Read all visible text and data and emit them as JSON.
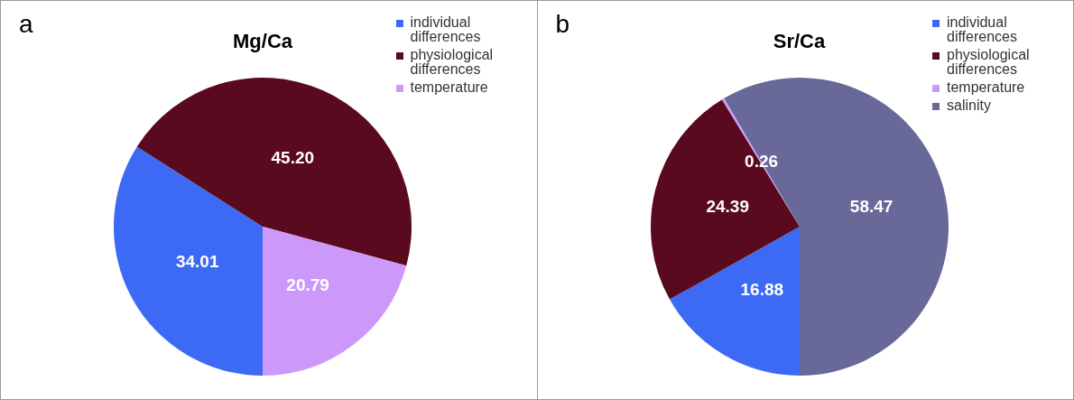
{
  "chart_data": [
    {
      "type": "pie",
      "title": "Mg/Ca",
      "annotations": [
        "a"
      ],
      "legend": "top right",
      "categories": [
        "individual differences",
        "physiological differences",
        "temperature"
      ],
      "values": [
        34.01,
        45.2,
        20.79
      ],
      "value_labels": [
        "34.01",
        "45.20",
        "20.79"
      ],
      "colors": [
        "#3d6af5",
        "#5a0a1e",
        "#cc99fb"
      ]
    },
    {
      "type": "pie",
      "title": "Sr/Ca",
      "annotations": [
        "b"
      ],
      "legend": "top right",
      "categories": [
        "individual differences",
        "physiological differences",
        "temperature",
        "salinity"
      ],
      "values": [
        16.88,
        24.39,
        0.26,
        58.47
      ],
      "value_labels": [
        "16.88",
        "24.39",
        "0.26",
        "58.47"
      ],
      "colors": [
        "#3d6af5",
        "#5a0a1e",
        "#cc99fb",
        "#686899"
      ]
    }
  ]
}
